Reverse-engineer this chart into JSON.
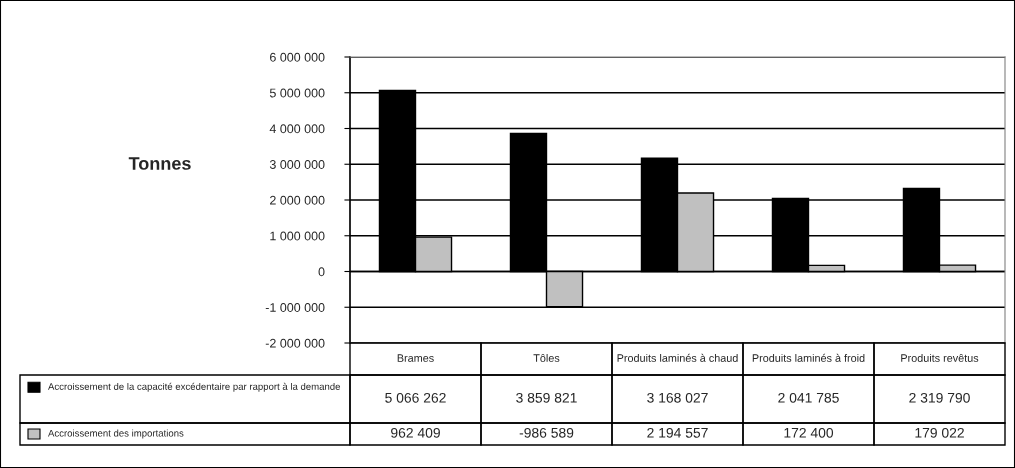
{
  "chart_data": {
    "type": "bar",
    "ylabel": "Tonnes",
    "categories": [
      "Brames",
      "Tôles",
      "Produits laminés à chaud",
      "Produits laminés à froid",
      "Produits revêtus"
    ],
    "series": [
      {
        "name": "Accroissement de la capacité excédentaire par rapport à la demande",
        "color": "#000000",
        "values": [
          5066262,
          3859821,
          3168027,
          2041785,
          2319790
        ]
      },
      {
        "name": "Accroissement des importations",
        "color": "#c0c0c0",
        "values": [
          962409,
          -986589,
          2194557,
          172400,
          179022
        ]
      }
    ],
    "ylim": [
      -2000000,
      6000000
    ],
    "yticks": [
      {
        "value": -2000000,
        "label": "-2 000 000"
      },
      {
        "value": -1000000,
        "label": "-1 000 000"
      },
      0,
      {
        "value": 1000000,
        "label": "1 000 000"
      },
      {
        "value": 2000000,
        "label": "2 000 000"
      },
      {
        "value": 3000000,
        "label": "3 000 000"
      },
      {
        "value": 4000000,
        "label": "4 000 000"
      },
      {
        "value": 5000000,
        "label": "5 000 000"
      },
      {
        "value": 6000000,
        "label": "6 000 000"
      }
    ],
    "grid": "y",
    "legend": "bottom",
    "data_labels": true
  }
}
